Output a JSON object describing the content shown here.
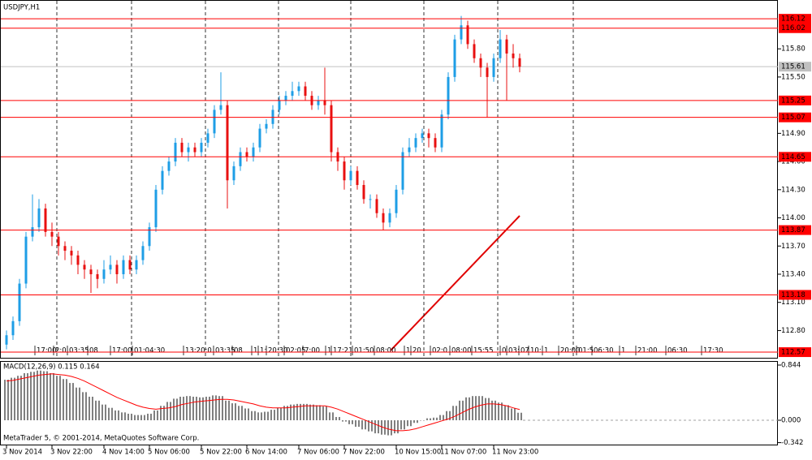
{
  "chart_data": [
    {
      "type": "candlestick",
      "title": "USDJPY,H1",
      "categories": [
        "3 Nov 2014",
        null,
        null,
        null,
        null,
        null,
        null,
        "3 Nov 22:00",
        null,
        null,
        null,
        null,
        null,
        null,
        null,
        "4 Nov 14:00",
        null,
        null,
        null,
        null,
        null,
        null,
        "5 Nov 06:00",
        null,
        null,
        null,
        null,
        null,
        null,
        null,
        "5 Nov 22:00",
        null,
        null,
        null,
        null,
        null,
        null,
        "6 Nov 14:00",
        null,
        null,
        null,
        null,
        null,
        null,
        null,
        "7 Nov 06:00",
        null,
        null,
        null,
        null,
        null,
        null,
        "7 Nov 22:00",
        null,
        null,
        null,
        null,
        null,
        null,
        null,
        "10 Nov 15:00",
        null,
        null,
        null,
        null,
        null,
        null,
        "11 Nov 07:00",
        null,
        null,
        null,
        null,
        null,
        null,
        null,
        "11 Nov 23:00",
        null,
        null,
        null,
        null
      ],
      "open": [
        112.65,
        112.75,
        112.9,
        113.3,
        113.8,
        113.9,
        114.1,
        113.85,
        113.8,
        113.7,
        113.65,
        113.6,
        113.5,
        113.45,
        113.4,
        113.35,
        113.45,
        113.5,
        113.4,
        113.55,
        113.45,
        113.55,
        113.7,
        113.9,
        114.3,
        114.5,
        114.6,
        114.8,
        114.7,
        114.75,
        114.7,
        114.8,
        114.9,
        115.15,
        115.2,
        114.4,
        114.55,
        114.7,
        114.65,
        114.75,
        114.95,
        115.0,
        115.15,
        115.25,
        115.3,
        115.35,
        115.4,
        115.3,
        115.2,
        115.25,
        115.2,
        114.7,
        114.6,
        114.4,
        114.5,
        114.35,
        114.2,
        114.2,
        114.05,
        113.95,
        114.05,
        114.3,
        114.7,
        114.75,
        114.85,
        114.9,
        114.85,
        114.75,
        115.1,
        115.5,
        115.9,
        116.05,
        115.85,
        115.7,
        115.6,
        115.5,
        115.7,
        115.9,
        115.75,
        115.7
      ],
      "high": [
        112.8,
        112.95,
        113.35,
        113.85,
        114.25,
        114.2,
        114.15,
        113.95,
        113.85,
        113.75,
        113.7,
        113.65,
        113.55,
        113.5,
        113.45,
        113.55,
        113.6,
        113.55,
        113.6,
        113.6,
        113.6,
        113.75,
        113.95,
        114.35,
        114.55,
        114.65,
        114.85,
        114.85,
        114.8,
        114.8,
        114.85,
        114.95,
        115.2,
        115.55,
        115.25,
        114.6,
        114.75,
        114.75,
        114.8,
        115.0,
        115.05,
        115.2,
        115.3,
        115.35,
        115.45,
        115.45,
        115.45,
        115.35,
        115.3,
        115.6,
        115.25,
        114.75,
        114.65,
        114.55,
        114.55,
        114.4,
        114.25,
        114.25,
        114.1,
        114.1,
        114.35,
        114.75,
        114.85,
        114.9,
        114.95,
        114.95,
        114.9,
        115.15,
        115.55,
        115.95,
        116.15,
        116.1,
        115.9,
        115.75,
        115.65,
        115.75,
        116.0,
        115.95,
        115.85,
        115.75
      ],
      "low": [
        112.6,
        112.7,
        112.85,
        113.25,
        113.75,
        113.85,
        113.8,
        113.7,
        113.6,
        113.55,
        113.5,
        113.4,
        113.35,
        113.2,
        113.25,
        113.3,
        113.4,
        113.3,
        113.35,
        113.4,
        113.4,
        113.5,
        113.65,
        113.85,
        114.25,
        114.45,
        114.55,
        114.65,
        114.6,
        114.65,
        114.65,
        114.75,
        114.85,
        115.1,
        114.1,
        114.35,
        114.5,
        114.6,
        114.6,
        114.7,
        114.9,
        114.95,
        115.1,
        115.2,
        115.25,
        115.3,
        115.25,
        115.15,
        115.15,
        115.1,
        114.6,
        114.5,
        114.3,
        114.35,
        114.3,
        114.15,
        114.1,
        114.0,
        113.87,
        113.9,
        114.0,
        114.25,
        114.65,
        114.7,
        114.8,
        114.75,
        114.7,
        114.7,
        115.05,
        115.45,
        115.85,
        115.8,
        115.65,
        115.5,
        115.07,
        115.45,
        115.65,
        115.25,
        115.6,
        115.55
      ],
      "close": [
        112.75,
        112.9,
        113.3,
        113.8,
        113.9,
        114.1,
        113.85,
        113.8,
        113.7,
        113.65,
        113.6,
        113.5,
        113.45,
        113.4,
        113.35,
        113.45,
        113.5,
        113.4,
        113.55,
        113.45,
        113.55,
        113.7,
        113.9,
        114.3,
        114.5,
        114.6,
        114.8,
        114.7,
        114.75,
        114.7,
        114.8,
        114.9,
        115.15,
        115.2,
        114.4,
        114.55,
        114.7,
        114.65,
        114.75,
        114.95,
        115.0,
        115.15,
        115.25,
        115.3,
        115.35,
        115.4,
        115.3,
        115.2,
        115.25,
        115.2,
        114.7,
        114.6,
        114.4,
        114.5,
        114.35,
        114.2,
        114.2,
        114.05,
        113.95,
        114.05,
        114.3,
        114.7,
        114.75,
        114.85,
        114.9,
        114.85,
        114.75,
        115.1,
        115.5,
        115.9,
        116.05,
        115.85,
        115.7,
        115.6,
        115.5,
        115.7,
        115.9,
        115.75,
        115.7,
        115.61
      ],
      "up_color": "#1e9ee6",
      "down_color": "#e81010",
      "ylim": [
        112.51,
        116.32
      ],
      "yticks": [
        {
          "value": 115.8,
          "label": "115.80"
        },
        {
          "value": 115.5,
          "label": "115.50"
        },
        {
          "value": 114.9,
          "label": "114.90"
        },
        {
          "value": 114.6,
          "label": "114.60"
        },
        {
          "value": 114.3,
          "label": "114.30"
        },
        {
          "value": 114,
          "label": "114.00"
        },
        {
          "value": 113.7,
          "label": "113.70"
        },
        {
          "value": 113.4,
          "label": "113.40"
        },
        {
          "value": 113.1,
          "label": "113.10"
        },
        {
          "value": 112.8,
          "label": "112.80"
        }
      ],
      "levels": [
        116.12,
        116.02,
        115.25,
        115.07,
        114.65,
        113.87,
        113.18,
        112.57
      ],
      "level_color": "#ff0000",
      "last_price": 115.61,
      "grid": true,
      "events": [
        "17:00",
        "2:0",
        "03:35",
        "08",
        "17:00",
        "01:04:30",
        "13:20:0",
        "03:35",
        "08",
        "1",
        "1:",
        "20:30",
        "02:05",
        "7:00",
        "1",
        "17:21",
        "01:50",
        "08:00",
        "1",
        "20",
        "02:0",
        "08:00",
        "15:55",
        "0",
        "03:",
        "07",
        "10:",
        "1",
        "20:00",
        "01:5",
        "06:30",
        "1",
        "21:00",
        "06:30",
        "17:30"
      ]
    },
    {
      "type": "macd",
      "title": "MACD(12,26,9) 0.115 0.164",
      "histogram": {
        "color": "#808080",
        "values": [
          0.62,
          0.65,
          0.68,
          0.72,
          0.74,
          0.76,
          0.75,
          0.72,
          0.68,
          0.63,
          0.57,
          0.5,
          0.43,
          0.36,
          0.3,
          0.24,
          0.19,
          0.15,
          0.12,
          0.1,
          0.08,
          0.08,
          0.1,
          0.15,
          0.22,
          0.28,
          0.33,
          0.36,
          0.37,
          0.36,
          0.35,
          0.36,
          0.38,
          0.37,
          0.3,
          0.26,
          0.22,
          0.18,
          0.14,
          0.12,
          0.13,
          0.16,
          0.19,
          0.22,
          0.24,
          0.25,
          0.25,
          0.24,
          0.23,
          0.21,
          0.12,
          0.05,
          -0.02,
          -0.06,
          -0.1,
          -0.14,
          -0.17,
          -0.2,
          -0.22,
          -0.23,
          -0.2,
          -0.14,
          -0.09,
          -0.04,
          0.0,
          0.03,
          0.04,
          0.08,
          0.14,
          0.22,
          0.3,
          0.35,
          0.37,
          0.37,
          0.34,
          0.3,
          0.27,
          0.23,
          0.18,
          0.115
        ]
      },
      "signal": {
        "color": "#ff0000",
        "values": [
          0.6,
          0.61,
          0.63,
          0.65,
          0.67,
          0.69,
          0.7,
          0.71,
          0.7,
          0.69,
          0.67,
          0.64,
          0.6,
          0.55,
          0.5,
          0.45,
          0.4,
          0.35,
          0.31,
          0.27,
          0.23,
          0.2,
          0.18,
          0.17,
          0.18,
          0.19,
          0.21,
          0.24,
          0.26,
          0.28,
          0.29,
          0.3,
          0.31,
          0.32,
          0.32,
          0.31,
          0.29,
          0.27,
          0.25,
          0.22,
          0.2,
          0.19,
          0.19,
          0.19,
          0.2,
          0.21,
          0.22,
          0.22,
          0.22,
          0.22,
          0.2,
          0.17,
          0.13,
          0.09,
          0.05,
          0.01,
          -0.03,
          -0.07,
          -0.11,
          -0.14,
          -0.16,
          -0.16,
          -0.15,
          -0.13,
          -0.1,
          -0.07,
          -0.04,
          -0.01,
          0.02,
          0.06,
          0.11,
          0.16,
          0.2,
          0.23,
          0.25,
          0.25,
          0.24,
          0.22,
          0.19,
          0.164
        ]
      },
      "ylim": [
        -0.372,
        0.881
      ],
      "yticks": [
        0.844,
        {
          "value": 0,
          "label": "0.000"
        },
        -0.342
      ]
    }
  ],
  "footer": "MetaTrader 5, © 2001-2014, MetaQuotes Software Corp."
}
